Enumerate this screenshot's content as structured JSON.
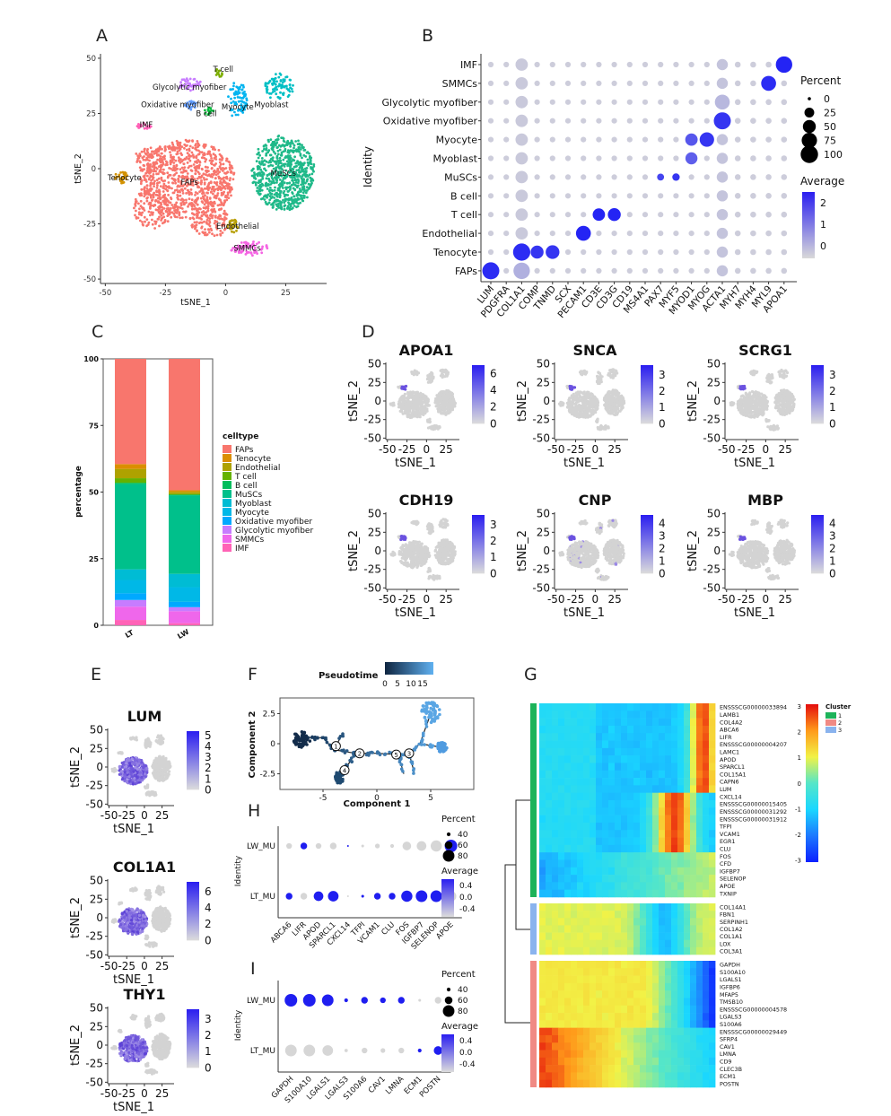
{
  "panel_letters": [
    "A",
    "B",
    "C",
    "D",
    "E",
    "F",
    "G",
    "H",
    "I"
  ],
  "chart_data": [
    {
      "panel": "A",
      "type": "scatter",
      "xlabel": "tSNE_1",
      "ylabel": "tSNE_2",
      "xticks": [
        -50,
        -25,
        0,
        25
      ],
      "yticks": [
        -50,
        -25,
        0,
        25,
        50
      ],
      "xlim": [
        -52,
        42
      ],
      "ylim": [
        -52,
        52
      ],
      "clusters": [
        {
          "name": "FAPs",
          "label_at": [
            -15,
            -6
          ],
          "color": "#f8766d"
        },
        {
          "name": "MuSCs",
          "label_at": [
            24,
            -2
          ],
          "color": "#1fb989"
        },
        {
          "name": "Tenocyte",
          "label_at": [
            -42,
            -4
          ],
          "color": "#d39200"
        },
        {
          "name": "Endothelial",
          "label_at": [
            5,
            -26
          ],
          "color": "#b79f00"
        },
        {
          "name": "SMMCs",
          "label_at": [
            9,
            -36
          ],
          "color": "#f564e3"
        },
        {
          "name": "IMF",
          "label_at": [
            -33,
            20
          ],
          "color": "#ff5fb5"
        },
        {
          "name": "Glycolytic myofiber",
          "label_at": [
            -15,
            37
          ],
          "color": "#c77cff"
        },
        {
          "name": "Oxidative myofiber",
          "label_at": [
            -20,
            29
          ],
          "color": "#619cff"
        },
        {
          "name": "T cell",
          "label_at": [
            -1,
            45
          ],
          "color": "#7cae00"
        },
        {
          "name": "B cell",
          "label_at": [
            -8,
            25
          ],
          "color": "#00ba38"
        },
        {
          "name": "Myocyte",
          "label_at": [
            5,
            28
          ],
          "color": "#00b4f0"
        },
        {
          "name": "Myoblast",
          "label_at": [
            19,
            29
          ],
          "color": "#00bfc4"
        }
      ]
    },
    {
      "panel": "B",
      "type": "scatter",
      "subtype": "dotplot",
      "ylabel": "Identity",
      "genes": [
        "LUM",
        "PDGFRA",
        "COL1A1",
        "COMP",
        "TNMD",
        "SCX",
        "PECAM1",
        "CD3E",
        "CD3G",
        "CD19",
        "MS4A1",
        "PAX7",
        "MYF5",
        "MYOD1",
        "MYOG",
        "ACTA1",
        "MYH7",
        "MYH4",
        "MYL9",
        "APOA1"
      ],
      "identities": [
        "IMF",
        "SMMCs",
        "Glycolytic myofiber",
        "Oxidative myofiber",
        "Myocyte",
        "Myoblast",
        "MuSCs",
        "B cell",
        "T cell",
        "Endothelial",
        "Tenocyte",
        "FAPs"
      ],
      "percent_legend": {
        "title": "Percent",
        "values": [
          0,
          25,
          50,
          75,
          100
        ]
      },
      "average_legend": {
        "title": "Average",
        "ticks": [
          2,
          1,
          0
        ]
      },
      "highlights": [
        {
          "identity": "IMF",
          "gene": "APOA1",
          "percent": 88,
          "average": 2.2
        },
        {
          "identity": "SMMCs",
          "gene": "MYL9",
          "percent": 70,
          "average": 2.1
        },
        {
          "identity": "Oxidative myofiber",
          "gene": "ACTA1",
          "percent": 95,
          "average": 2.0
        },
        {
          "identity": "Glycolytic myofiber",
          "gene": "ACTA1",
          "percent": 70,
          "average": 0.4
        },
        {
          "identity": "Myocyte",
          "gene": "MYOG",
          "percent": 65,
          "average": 2.0
        },
        {
          "identity": "Myocyte",
          "gene": "MYOD1",
          "percent": 45,
          "average": 1.6
        },
        {
          "identity": "Myoblast",
          "gene": "MYOD1",
          "percent": 42,
          "average": 1.5
        },
        {
          "identity": "MuSCs",
          "gene": "MYF5",
          "percent": 12,
          "average": 2.0
        },
        {
          "identity": "MuSCs",
          "gene": "PAX7",
          "percent": 10,
          "average": 1.8
        },
        {
          "identity": "T cell",
          "gene": "CD3E",
          "percent": 45,
          "average": 2.2
        },
        {
          "identity": "T cell",
          "gene": "CD3G",
          "percent": 50,
          "average": 2.2
        },
        {
          "identity": "Endothelial",
          "gene": "PECAM1",
          "percent": 70,
          "average": 2.2
        },
        {
          "identity": "Tenocyte",
          "gene": "COL1A1",
          "percent": 98,
          "average": 2.1
        },
        {
          "identity": "Tenocyte",
          "gene": "COMP",
          "percent": 50,
          "average": 2.0
        },
        {
          "identity": "Tenocyte",
          "gene": "TNMD",
          "percent": 58,
          "average": 2.0
        },
        {
          "identity": "FAPs",
          "gene": "LUM",
          "percent": 95,
          "average": 2.1
        },
        {
          "identity": "FAPs",
          "gene": "COL1A1",
          "percent": 88,
          "average": 0.5
        }
      ]
    },
    {
      "panel": "C",
      "type": "bar",
      "subtype": "stacked",
      "ylabel": "percentage",
      "yticks": [
        0,
        25,
        50,
        75,
        100
      ],
      "categories": [
        "LT",
        "LW"
      ],
      "legend_title": "celltype",
      "series": [
        {
          "name": "FAPs",
          "color": "#f8766d",
          "values": [
            39.5,
            49.3
          ]
        },
        {
          "name": "Tenocyte",
          "color": "#db8e00",
          "values": [
            1.8,
            0.6
          ]
        },
        {
          "name": "Endothelial",
          "color": "#aea200",
          "values": [
            3.5,
            0.8
          ]
        },
        {
          "name": "T cell",
          "color": "#64b200",
          "values": [
            1.7,
            0.3
          ]
        },
        {
          "name": "B cell",
          "color": "#00bd5c",
          "values": [
            0.5,
            0.2
          ]
        },
        {
          "name": "MuSCs",
          "color": "#00c08b",
          "values": [
            32,
            29.5
          ]
        },
        {
          "name": "Myoblast",
          "color": "#00bcd4",
          "values": [
            4,
            5
          ]
        },
        {
          "name": "Myocyte",
          "color": "#00b8e7",
          "values": [
            5,
            5.5
          ]
        },
        {
          "name": "Oxidative myofiber",
          "color": "#00a9ff",
          "values": [
            2.5,
            2
          ]
        },
        {
          "name": "Glycolytic myofiber",
          "color": "#c77cff",
          "values": [
            2.5,
            1.5
          ]
        },
        {
          "name": "SMMCs",
          "color": "#ef67eb",
          "values": [
            5,
            4.5
          ]
        },
        {
          "name": "IMF",
          "color": "#ff63b6",
          "values": [
            2,
            0.8
          ]
        }
      ]
    },
    {
      "panel": "D",
      "type": "scatter",
      "subtype": "feature_plot",
      "xlabel": "tSNE_1",
      "ylabel": "tSNE_2",
      "xticks": [
        -50,
        -25,
        0,
        25
      ],
      "yticks": [
        -50,
        -25,
        0,
        25,
        50
      ],
      "plots": [
        {
          "gene": "APOA1",
          "scale": [
            6,
            4,
            2,
            0
          ],
          "max": 7
        },
        {
          "gene": "SNCA",
          "scale": [
            3,
            2,
            1,
            0
          ],
          "max": 3.6
        },
        {
          "gene": "SCRG1",
          "scale": [
            3,
            2,
            1,
            0
          ],
          "max": 3.6
        },
        {
          "gene": "CDH19",
          "scale": [
            3,
            2,
            1,
            0
          ],
          "max": 3.6
        },
        {
          "gene": "CNP",
          "scale": [
            4,
            3,
            2,
            1,
            0
          ],
          "max": 4.7
        },
        {
          "gene": "MBP",
          "scale": [
            4,
            3,
            2,
            1,
            0
          ],
          "max": 4.7
        }
      ]
    },
    {
      "panel": "E",
      "type": "scatter",
      "subtype": "feature_plot",
      "xlabel": "tSNE_1",
      "ylabel": "tSNE_2",
      "xticks": [
        -50,
        -25,
        0,
        25
      ],
      "yticks": [
        -50,
        -25,
        0,
        25,
        50
      ],
      "plots": [
        {
          "gene": "LUM",
          "scale": [
            5,
            4,
            3,
            2,
            1,
            0
          ],
          "max": 5.4
        },
        {
          "gene": "COL1A1",
          "scale": [
            6,
            4,
            2,
            0
          ],
          "max": 7.2
        },
        {
          "gene": "THY1",
          "scale": [
            3,
            2,
            1,
            0
          ],
          "max": 3.6
        }
      ]
    },
    {
      "panel": "F",
      "type": "scatter",
      "subtype": "trajectory",
      "xlabel": "Component 1",
      "ylabel": "Component 2",
      "xticks": [
        -5,
        0,
        5
      ],
      "yticks": [
        2.5,
        0.0,
        -2.5
      ],
      "legend_title": "Pseudotime",
      "legend_ticks": [
        "0",
        "5",
        "10",
        "15"
      ],
      "branch_nodes": [
        "1",
        "2",
        "3",
        "4",
        "5"
      ]
    },
    {
      "panel": "H",
      "type": "scatter",
      "subtype": "dotplot",
      "ylabel": "Identity",
      "genes": [
        "ABCA6",
        "LIFR",
        "APOD",
        "SPARCL1",
        "CXCL14",
        "TFPI",
        "VCAM1",
        "CLU",
        "FOS",
        "IGFBP7",
        "SELENOP",
        "APOE"
      ],
      "identities": [
        "LW_MU",
        "LT_MU"
      ],
      "percent_legend": {
        "title": "Percent",
        "values": [
          40,
          60,
          80
        ]
      },
      "average_legend": {
        "title": "Average",
        "ticks": [
          "0.4",
          "0.0",
          "-0.4"
        ]
      },
      "rows": [
        {
          "identity": "LW_MU",
          "percent": [
            50,
            55,
            50,
            55,
            30,
            35,
            45,
            40,
            65,
            70,
            78,
            85
          ],
          "average": [
            -0.6,
            0.6,
            -0.6,
            -0.6,
            0.6,
            -0.6,
            -0.6,
            -0.6,
            -0.6,
            -0.6,
            -0.6,
            0.6
          ]
        },
        {
          "identity": "LT_MU",
          "percent": [
            55,
            55,
            70,
            75,
            30,
            35,
            55,
            55,
            78,
            80,
            80,
            75
          ],
          "average": [
            0.6,
            -0.6,
            0.6,
            0.6,
            -0.6,
            0.6,
            0.6,
            0.6,
            0.6,
            0.6,
            0.6,
            -0.6
          ]
        }
      ]
    },
    {
      "panel": "I",
      "type": "scatter",
      "subtype": "dotplot",
      "ylabel": "Identity",
      "genes": [
        "GAPDH",
        "S100A10",
        "LGALS1",
        "LGALS3",
        "S100A6",
        "CAV1",
        "LMNA",
        "ECM1",
        "POSTN"
      ],
      "identities": [
        "LW_MU",
        "LT_MU"
      ],
      "percent_legend": {
        "title": "Percent",
        "values": [
          40,
          60,
          80
        ]
      },
      "average_legend": {
        "title": "Average",
        "ticks": [
          "0.4",
          "0.0",
          "-0.4"
        ]
      },
      "rows": [
        {
          "identity": "LW_MU",
          "percent": [
            85,
            85,
            80,
            40,
            55,
            50,
            55,
            35,
            55
          ],
          "average": [
            0.6,
            0.6,
            0.6,
            0.6,
            0.6,
            0.6,
            0.6,
            -0.6,
            -0.6
          ]
        },
        {
          "identity": "LT_MU",
          "percent": [
            80,
            80,
            75,
            38,
            50,
            45,
            50,
            40,
            65
          ],
          "average": [
            -0.6,
            -0.6,
            -0.6,
            -0.6,
            -0.6,
            -0.6,
            -0.6,
            0.6,
            0.6
          ]
        }
      ]
    },
    {
      "panel": "G",
      "type": "heatmap",
      "legend_ticks": [
        "3",
        "2",
        "1",
        "0",
        "-1",
        "-2",
        "-3"
      ],
      "cluster_legend": {
        "title": "Cluster",
        "items": [
          {
            "name": "1",
            "color": "#1db35a"
          },
          {
            "name": "2",
            "color": "#f08a84"
          },
          {
            "name": "3",
            "color": "#8ab3ee"
          }
        ]
      },
      "clusters": [
        {
          "name": "1",
          "genes": [
            "ENSSSCG00000033894",
            "LAMB1",
            "COL4A2",
            "ABCA6",
            "LIFR",
            "ENSSSCG00000004207",
            "LAMC1",
            "APOD",
            "SPARCL1",
            "COL15A1",
            "CAPN6",
            "LUM",
            "CXCL14",
            "ENSSSCG00000015405",
            "ENSSSCG00000031292",
            "ENSSSCG00000031912",
            "TFPI",
            "VCAM1",
            "EGR1",
            "CLU",
            "FOS",
            "CFD",
            "IGFBP7",
            "SELENOP",
            "APOE",
            "TXNIP"
          ]
        },
        {
          "name": "3",
          "genes": [
            "COL14A1",
            "FBN1",
            "SERPINH1",
            "COL1A2",
            "COL1A1",
            "LOX",
            "COL3A1"
          ]
        },
        {
          "name": "2",
          "genes": [
            "GAPDH",
            "S100A10",
            "LGALS1",
            "IGFBP6",
            "MFAP5",
            "TMSB10",
            "ENSSSCG00000004578",
            "LGALS3",
            "S100A6",
            "ENSSSCG00000029449",
            "SFRP4",
            "CAV1",
            "LMNA",
            "CD9",
            "CLEC3B",
            "ECM1",
            "POSTN"
          ]
        }
      ]
    }
  ]
}
